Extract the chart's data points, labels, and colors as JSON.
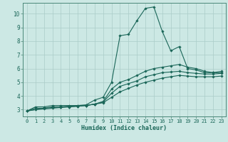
{
  "xlabel": "Humidex (Indice chaleur)",
  "bg_color": "#cce8e4",
  "grid_color": "#aaccc8",
  "line_color": "#1a6658",
  "spine_color": "#4a8878",
  "xlim": [
    -0.5,
    23.5
  ],
  "ylim": [
    2.5,
    10.8
  ],
  "yticks": [
    3,
    4,
    5,
    6,
    7,
    8,
    9,
    10
  ],
  "xticks": [
    0,
    1,
    2,
    3,
    4,
    5,
    6,
    7,
    8,
    9,
    10,
    11,
    12,
    13,
    14,
    15,
    16,
    17,
    18,
    19,
    20,
    21,
    22,
    23
  ],
  "tick_fontsize": 5,
  "xlabel_fontsize": 6,
  "lines": [
    {
      "x": [
        0,
        1,
        2,
        3,
        4,
        5,
        6,
        7,
        8,
        9,
        10,
        11,
        12,
        13,
        14,
        15,
        16,
        17,
        18,
        19,
        20,
        21,
        22,
        23
      ],
      "y": [
        2.9,
        3.2,
        3.2,
        3.3,
        3.3,
        3.3,
        3.3,
        3.35,
        3.7,
        3.9,
        5.0,
        8.4,
        8.5,
        9.5,
        10.4,
        10.5,
        8.7,
        7.3,
        7.6,
        6.0,
        5.9,
        5.7,
        5.7,
        5.8
      ]
    },
    {
      "x": [
        0,
        1,
        2,
        3,
        4,
        5,
        6,
        7,
        8,
        9,
        10,
        11,
        12,
        13,
        14,
        15,
        16,
        17,
        18,
        19,
        20,
        21,
        22,
        23
      ],
      "y": [
        2.9,
        3.1,
        3.1,
        3.2,
        3.2,
        3.25,
        3.3,
        3.3,
        3.4,
        3.6,
        4.5,
        5.0,
        5.2,
        5.5,
        5.8,
        6.0,
        6.1,
        6.2,
        6.3,
        6.1,
        6.0,
        5.8,
        5.7,
        5.7
      ]
    },
    {
      "x": [
        0,
        1,
        2,
        3,
        4,
        5,
        6,
        7,
        8,
        9,
        10,
        11,
        12,
        13,
        14,
        15,
        16,
        17,
        18,
        19,
        20,
        21,
        22,
        23
      ],
      "y": [
        2.9,
        3.0,
        3.1,
        3.15,
        3.2,
        3.2,
        3.25,
        3.3,
        3.4,
        3.55,
        4.2,
        4.7,
        4.9,
        5.1,
        5.4,
        5.55,
        5.7,
        5.75,
        5.8,
        5.7,
        5.65,
        5.6,
        5.6,
        5.65
      ]
    },
    {
      "x": [
        0,
        1,
        2,
        3,
        4,
        5,
        6,
        7,
        8,
        9,
        10,
        11,
        12,
        13,
        14,
        15,
        16,
        17,
        18,
        19,
        20,
        21,
        22,
        23
      ],
      "y": [
        2.9,
        3.0,
        3.05,
        3.1,
        3.15,
        3.2,
        3.25,
        3.3,
        3.4,
        3.5,
        3.9,
        4.3,
        4.55,
        4.8,
        5.0,
        5.15,
        5.3,
        5.4,
        5.5,
        5.45,
        5.4,
        5.4,
        5.4,
        5.45
      ]
    }
  ]
}
